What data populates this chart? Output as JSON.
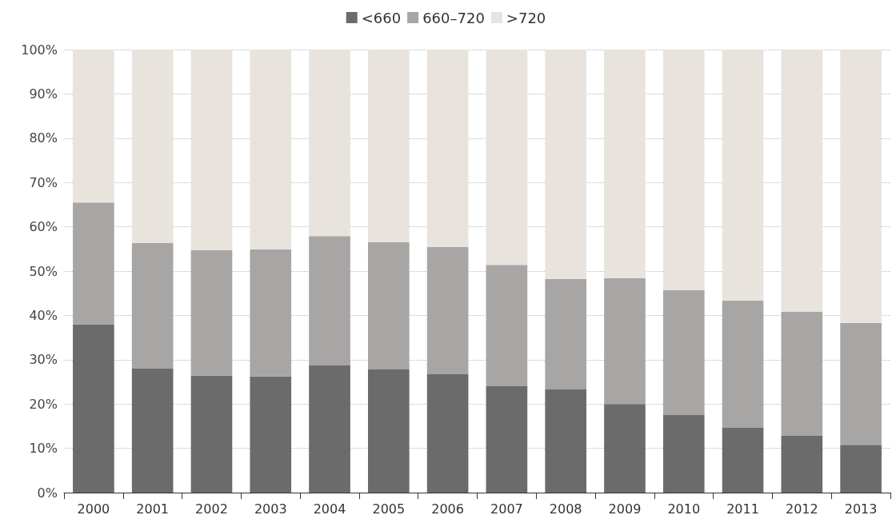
{
  "chart_data": {
    "type": "bar",
    "stacked": true,
    "categories": [
      "2000",
      "2001",
      "2002",
      "2003",
      "2004",
      "2005",
      "2006",
      "2007",
      "2008",
      "2009",
      "2010",
      "2011",
      "2012",
      "2013"
    ],
    "series": [
      {
        "name": "<660",
        "color": "#6b6b6b",
        "values": [
          38,
          28,
          26.4,
          26.2,
          28.7,
          27.8,
          26.7,
          24,
          23.3,
          20,
          17.5,
          14.6,
          12.8,
          10.8
        ]
      },
      {
        "name": "660–720",
        "color": "#a8a5a5",
        "values": [
          27.5,
          28.3,
          28.3,
          28.7,
          29.2,
          28.7,
          28.7,
          27.4,
          24.9,
          28.4,
          28.2,
          28.7,
          28,
          27.5
        ]
      },
      {
        "name": ">720",
        "color": "#e8e3dc",
        "values": [
          34.5,
          43.7,
          45.3,
          45.1,
          42.1,
          43.5,
          44.6,
          48.6,
          51.8,
          51.6,
          54.3,
          56.7,
          59.2,
          61.7
        ]
      }
    ],
    "ylim": [
      0,
      100
    ],
    "yticks": [
      {
        "value": 0,
        "label": "0%"
      },
      {
        "value": 10,
        "label": "10%"
      },
      {
        "value": 20,
        "label": "20%"
      },
      {
        "value": 30,
        "label": "30%"
      },
      {
        "value": 40,
        "label": "40%"
      },
      {
        "value": 50,
        "label": "50%"
      },
      {
        "value": 60,
        "label": "60%"
      },
      {
        "value": 70,
        "label": "70%"
      },
      {
        "value": 80,
        "label": "80%"
      },
      {
        "value": 90,
        "label": "90%"
      },
      {
        "value": 100,
        "label": "100%"
      }
    ],
    "grid": "y",
    "legend": "top"
  }
}
